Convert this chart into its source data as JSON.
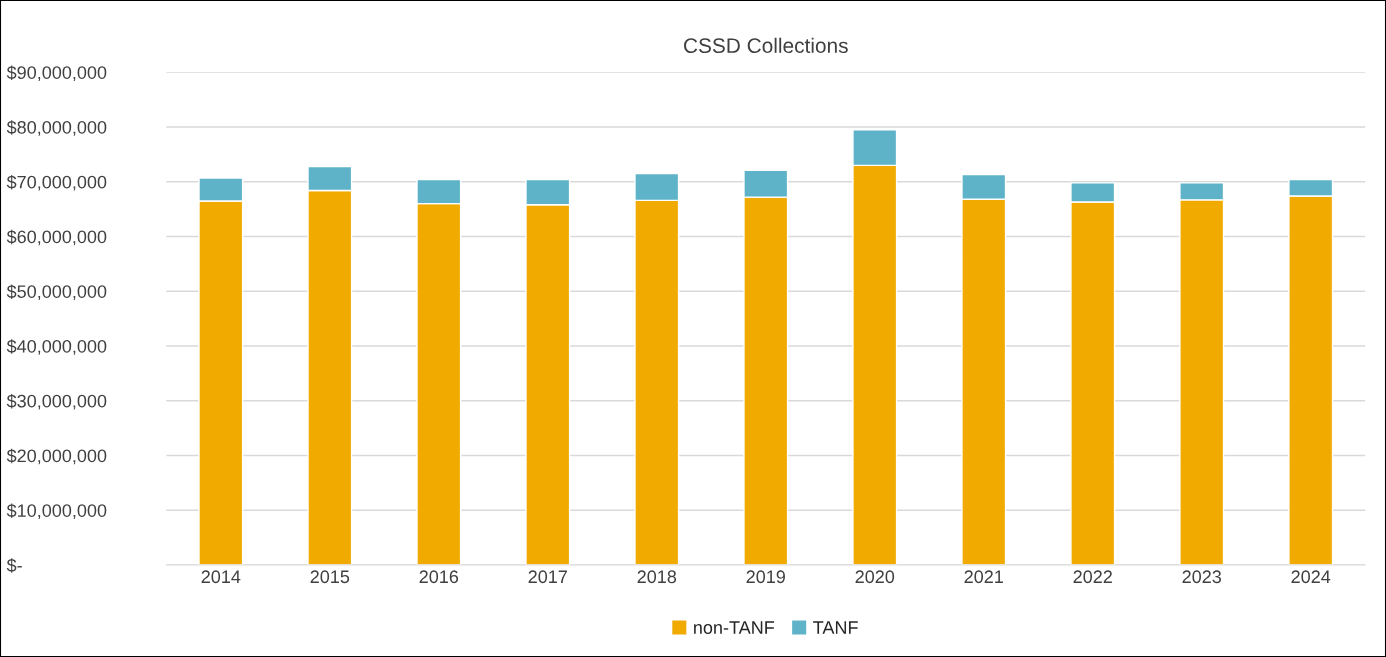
{
  "chart_data": {
    "type": "bar",
    "title": "CSSD Collections",
    "stacked": true,
    "categories": [
      "2014",
      "2015",
      "2016",
      "2017",
      "2018",
      "2019",
      "2020",
      "2021",
      "2022",
      "2023",
      "2024"
    ],
    "series": [
      {
        "name": "non-TANF",
        "color": "#f0aa00",
        "values": [
          66500000,
          68400000,
          66000000,
          65800000,
          66600000,
          67200000,
          73000000,
          66800000,
          66300000,
          66700000,
          67400000
        ]
      },
      {
        "name": "TANF",
        "color": "#5fb3c8",
        "values": [
          4200000,
          4400000,
          4400000,
          4600000,
          4900000,
          4900000,
          6500000,
          4500000,
          3500000,
          3100000,
          3000000
        ]
      }
    ],
    "ylim": [
      0,
      90000000
    ],
    "yticks": [
      {
        "value": 0,
        "label": "$-"
      },
      {
        "value": 10000000,
        "label": "$10,000,000"
      },
      {
        "value": 20000000,
        "label": "$20,000,000"
      },
      {
        "value": 30000000,
        "label": "$30,000,000"
      },
      {
        "value": 40000000,
        "label": "$40,000,000"
      },
      {
        "value": 50000000,
        "label": "$50,000,000"
      },
      {
        "value": 60000000,
        "label": "$60,000,000"
      },
      {
        "value": 70000000,
        "label": "$70,000,000"
      },
      {
        "value": 80000000,
        "label": "$80,000,000"
      },
      {
        "value": 90000000,
        "label": "$90,000,000"
      }
    ],
    "grid": "y",
    "legend": "bottom"
  }
}
